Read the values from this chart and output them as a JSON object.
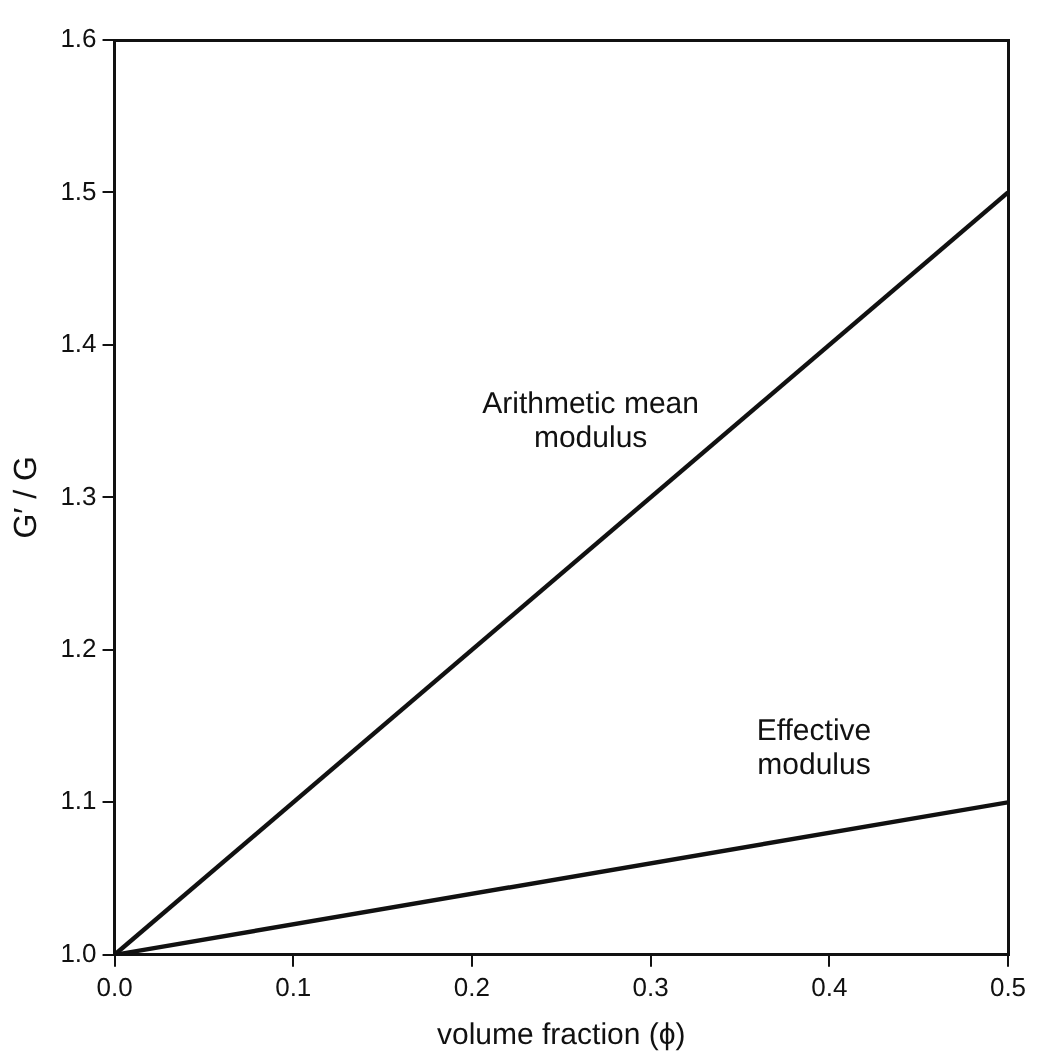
{
  "chart_data": {
    "type": "line",
    "xlabel": "volume fraction (ϕ)",
    "ylabel": "G′ / G",
    "x": [
      0,
      0.5
    ],
    "series": [
      {
        "name": "Arithmetic mean modulus",
        "color": "#111111",
        "values": [
          1.0,
          1.5
        ]
      },
      {
        "name": "Effective modulus",
        "color": "#111111",
        "values": [
          1.0,
          1.1
        ]
      }
    ],
    "xlim": [
      0,
      0.5
    ],
    "xticks": [
      {
        "value": 0,
        "label": "0.0"
      },
      {
        "value": 0.1,
        "label": "0.1"
      },
      {
        "value": 0.2,
        "label": "0.2"
      },
      {
        "value": 0.3,
        "label": "0.3"
      },
      {
        "value": 0.4,
        "label": "0.4"
      },
      {
        "value": 0.5,
        "label": "0.5"
      }
    ],
    "ylim": [
      1.0,
      1.6
    ],
    "yticks": [
      {
        "value": 1.0,
        "label": "1.0"
      },
      {
        "value": 1.1,
        "label": "1.1"
      },
      {
        "value": 1.2,
        "label": "1.2"
      },
      {
        "value": 1.3,
        "label": "1.3"
      },
      {
        "value": 1.4,
        "label": "1.4"
      },
      {
        "value": 1.5,
        "label": "1.5"
      },
      {
        "value": 1.6,
        "label": "1.6"
      }
    ],
    "grid": false,
    "legend": false,
    "marker": "none",
    "line_style": "solid"
  }
}
